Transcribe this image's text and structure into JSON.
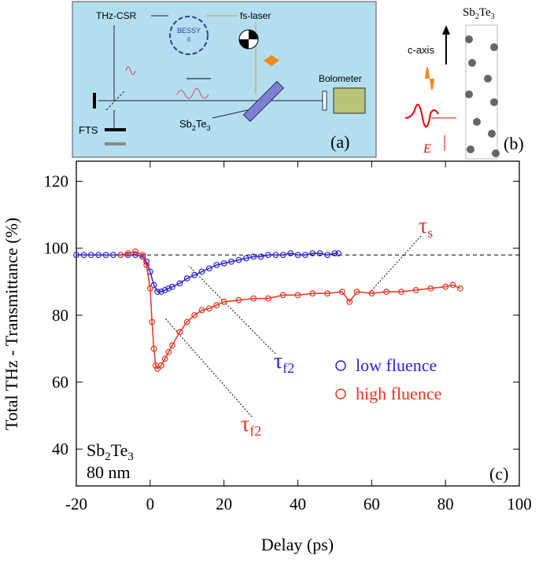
{
  "chart_data": {
    "type": "scatter",
    "xlabel": "Delay (ps)",
    "ylabel": "Total THz - Transmittance (%)",
    "xlim": [
      -20,
      100
    ],
    "ylim": [
      29,
      126
    ],
    "xticks": [
      -20,
      0,
      20,
      40,
      60,
      80,
      100
    ],
    "yticks": [
      40,
      60,
      80,
      100,
      120
    ],
    "reference_line": 98,
    "series": [
      {
        "name": "low fluence",
        "color": "#2b22d6",
        "x": [
          -20,
          -18,
          -16,
          -14,
          -12,
          -10,
          -8,
          -6,
          -4,
          -2,
          -1,
          0,
          1,
          2,
          3,
          4,
          5,
          6,
          8,
          10,
          12,
          14,
          16,
          18,
          20,
          22,
          24,
          26,
          28,
          30,
          32,
          34,
          36,
          38,
          40,
          42,
          44,
          46,
          48,
          50,
          51
        ],
        "values": [
          98,
          98,
          98,
          98,
          98,
          98,
          98,
          98,
          98,
          97.5,
          96,
          93,
          89,
          87,
          87,
          87.5,
          88,
          88.5,
          89.5,
          91,
          92,
          93,
          94,
          95,
          95.5,
          96,
          96.5,
          97,
          97.5,
          97.5,
          98,
          98,
          98,
          98.5,
          98,
          98,
          98.5,
          98.5,
          98,
          98.5,
          98.5
        ]
      },
      {
        "name": "high fluence",
        "color": "#e8341c",
        "x": [
          -8,
          -6,
          -4,
          -2,
          -1,
          0,
          0.5,
          1,
          1.5,
          2,
          3,
          4,
          5,
          6,
          8,
          10,
          12,
          14,
          16,
          18,
          20,
          24,
          28,
          32,
          36,
          40,
          44,
          48,
          52,
          54,
          56,
          60,
          64,
          68,
          72,
          76,
          80,
          82,
          84
        ],
        "values": [
          98,
          98.5,
          99,
          98,
          95,
          88,
          78,
          70,
          65,
          64,
          65,
          67,
          69,
          71,
          75,
          78,
          80,
          81.5,
          82,
          83,
          84,
          84.5,
          85,
          85,
          86,
          86,
          86.5,
          86.5,
          87,
          84,
          87,
          86.5,
          87,
          87,
          87.5,
          88,
          88.5,
          89,
          88
        ]
      }
    ],
    "annotations": [
      {
        "text": "τ",
        "sub": "s"
      },
      {
        "text": "τ",
        "sub": "f2"
      },
      {
        "text": "τ",
        "sub": "f2"
      }
    ],
    "sample": {
      "formula": [
        "Sb",
        "2",
        "Te",
        "3"
      ],
      "thickness": "80 nm"
    },
    "panel_label": "(c)"
  },
  "diagram": {
    "a": {
      "source": "THz-CSR",
      "laser": "fs-laser",
      "ring": [
        "BESSY",
        "II"
      ],
      "detector": "Bolometer",
      "spectrometer": "FTS",
      "sample": [
        "Sb",
        "2",
        "Te",
        "3"
      ],
      "panel_label": "(a)"
    },
    "b": {
      "title": [
        "Sb",
        "2",
        "Te",
        "3"
      ],
      "axis": "c-axis",
      "field": "E",
      "panel_label": "(b)"
    }
  }
}
